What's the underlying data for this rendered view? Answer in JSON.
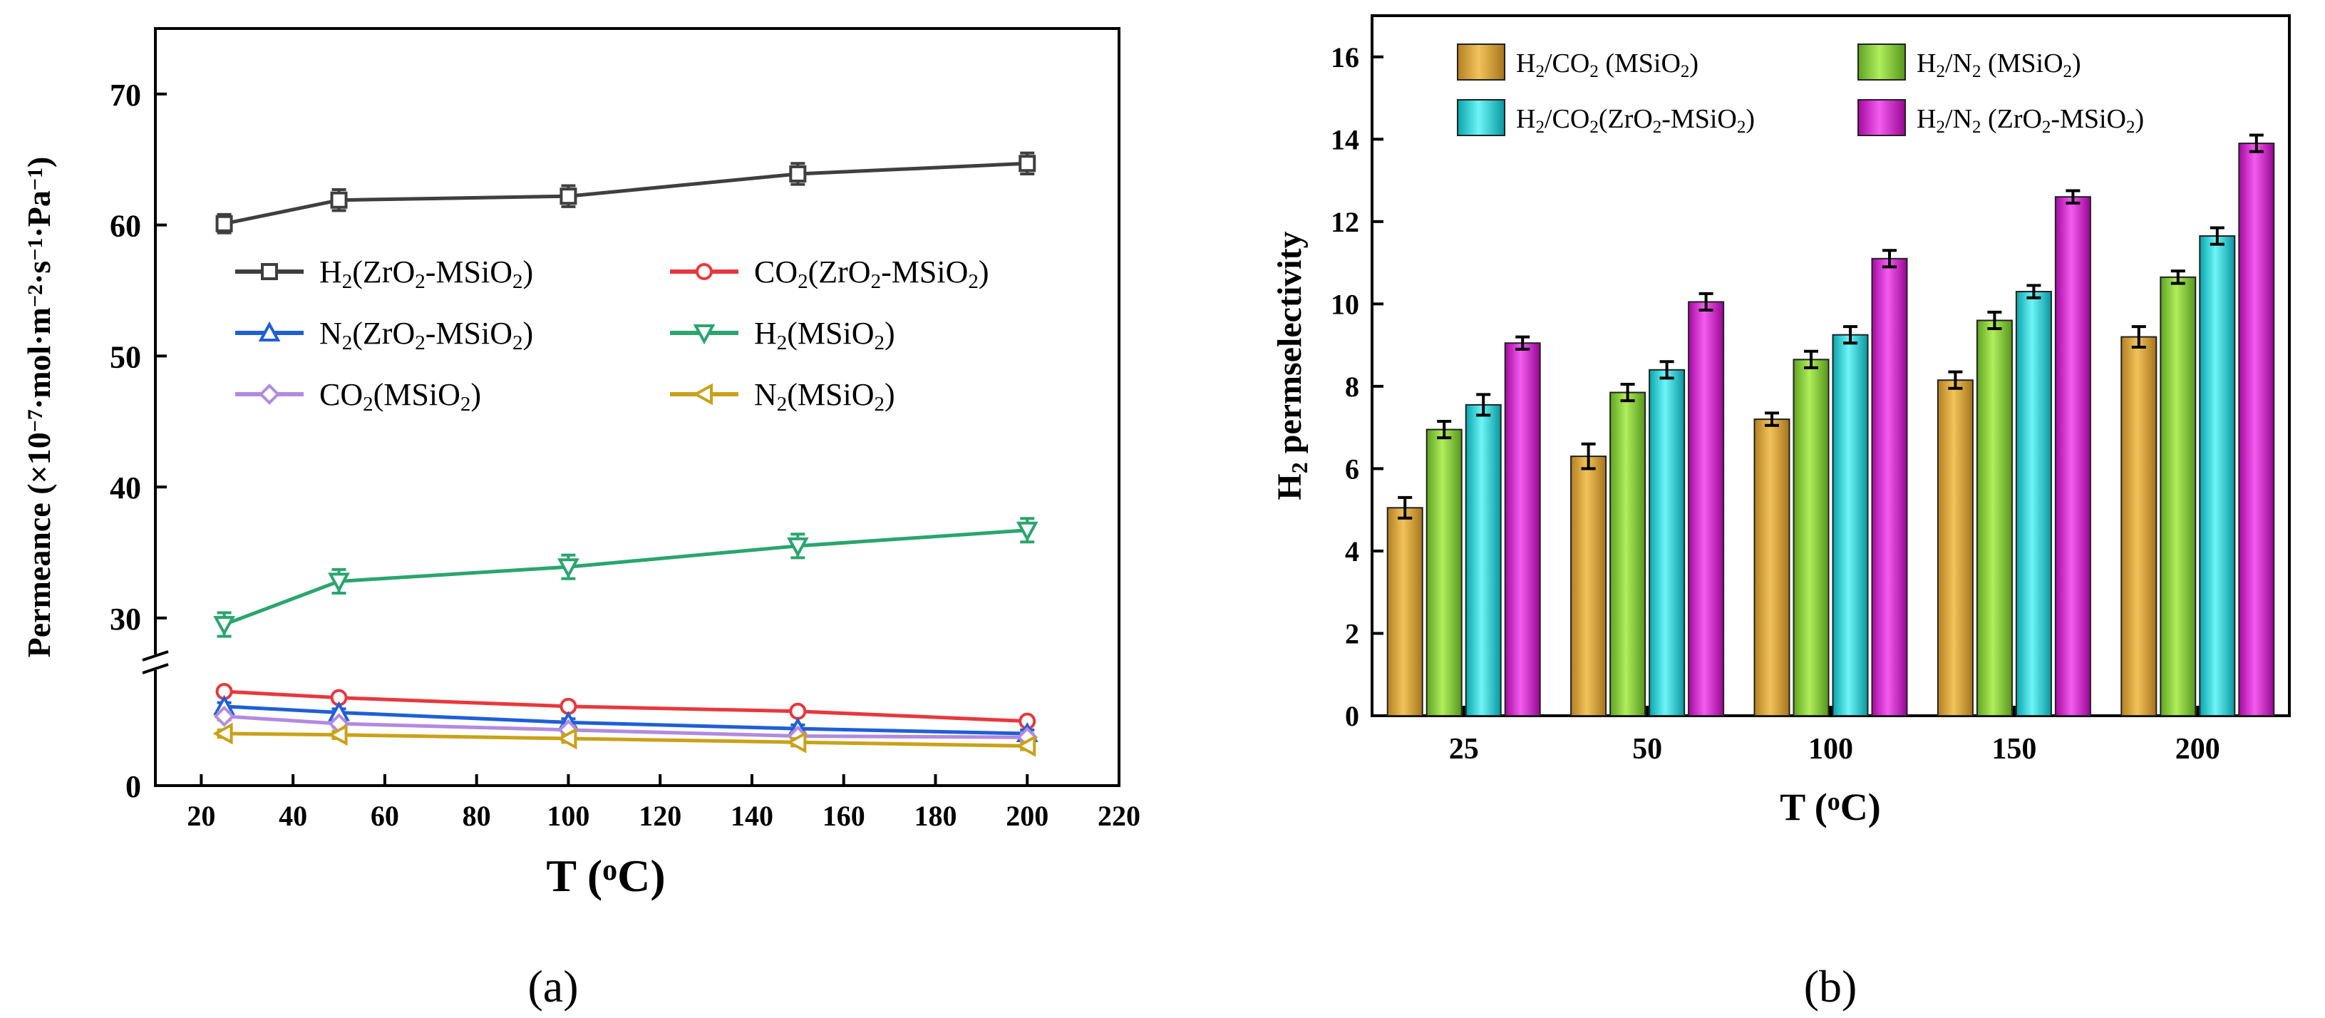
{
  "chart_data": [
    {
      "type": "line",
      "panel_label": "(a)",
      "xlabel": "T (°C)",
      "ylabel": "Permeance (×10⁻⁷·mol·m⁻²·s⁻¹·Pa⁻¹)",
      "xlim": [
        10,
        220
      ],
      "xticks": [
        20,
        40,
        60,
        80,
        100,
        120,
        140,
        160,
        180,
        200,
        220
      ],
      "yticks_upper": [
        30,
        40,
        50,
        60,
        70
      ],
      "ylim_upper": [
        27,
        75
      ],
      "yticks_lower": [
        0
      ],
      "ylim_lower": [
        0,
        9.5
      ],
      "axis_break": true,
      "legend_position": "middle",
      "x": [
        25,
        50,
        100,
        150,
        200
      ],
      "series": [
        {
          "name": "H₂(ZrO₂-MSiO₂)",
          "color": "#3f3f3f",
          "marker": "square",
          "values": [
            60.1,
            61.9,
            62.2,
            63.9,
            64.7
          ],
          "errors": [
            0.7,
            0.8,
            0.8,
            0.8,
            0.8
          ]
        },
        {
          "name": "CO₂(ZrO₂-MSiO₂)",
          "color": "#e8383d",
          "marker": "circle",
          "values": [
            7.6,
            7.1,
            6.4,
            6.0,
            5.2
          ],
          "errors": [
            0.3,
            0.3,
            0.3,
            0.3,
            0.3
          ]
        },
        {
          "name": "N₂(ZrO₂-MSiO₂)",
          "color": "#1f5fd6",
          "marker": "triangle-up",
          "values": [
            6.4,
            5.9,
            5.1,
            4.6,
            4.2
          ],
          "errors": [
            0.3,
            0.3,
            0.3,
            0.3,
            0.3
          ]
        },
        {
          "name": "H₂(MSiO₂)",
          "color": "#2aa56e",
          "marker": "triangle-down",
          "values": [
            29.5,
            32.8,
            33.9,
            35.5,
            36.7
          ],
          "errors": [
            0.9,
            0.9,
            0.9,
            0.9,
            0.9
          ]
        },
        {
          "name": "CO₂(MSiO₂)",
          "color": "#b28ae0",
          "marker": "diamond",
          "values": [
            5.6,
            5.0,
            4.5,
            4.0,
            3.9
          ],
          "errors": [
            0.3,
            0.3,
            0.3,
            0.3,
            0.3
          ]
        },
        {
          "name": "N₂(MSiO₂)",
          "color": "#c9a21a",
          "marker": "triangle-left",
          "values": [
            4.2,
            4.1,
            3.8,
            3.5,
            3.2
          ],
          "errors": [
            0.3,
            0.3,
            0.3,
            0.3,
            0.3
          ]
        }
      ]
    },
    {
      "type": "bar",
      "panel_label": "(b)",
      "xlabel": "T (°C)",
      "ylabel": "H₂ permselectivity",
      "ylim": [
        0,
        17
      ],
      "yticks": [
        0,
        2,
        4,
        6,
        8,
        10,
        12,
        14,
        16
      ],
      "categories": [
        "25",
        "50",
        "100",
        "150",
        "200"
      ],
      "legend_position": "top",
      "series": [
        {
          "name": "H₂/CO₂   (MSiO₂)",
          "color": "#d9a23c",
          "values": [
            5.05,
            6.3,
            7.2,
            8.15,
            9.2
          ],
          "errors": [
            0.25,
            0.3,
            0.15,
            0.2,
            0.25
          ]
        },
        {
          "name": "H₂/N₂      (MSiO₂)",
          "color": "#8cd640",
          "values": [
            6.95,
            7.85,
            8.65,
            9.6,
            10.65
          ],
          "errors": [
            0.2,
            0.2,
            0.2,
            0.2,
            0.15
          ]
        },
        {
          "name": "H₂/CO₂(ZrO₂-MSiO₂)",
          "color": "#1ad6de",
          "values": [
            7.55,
            8.4,
            9.25,
            10.3,
            11.65
          ],
          "errors": [
            0.25,
            0.2,
            0.2,
            0.15,
            0.2
          ]
        },
        {
          "name": "H₂/N₂   (ZrO₂-MSiO₂)",
          "color": "#d61fd0",
          "values": [
            9.05,
            10.05,
            11.1,
            12.6,
            13.9
          ],
          "errors": [
            0.15,
            0.2,
            0.2,
            0.15,
            0.2
          ]
        }
      ]
    }
  ]
}
